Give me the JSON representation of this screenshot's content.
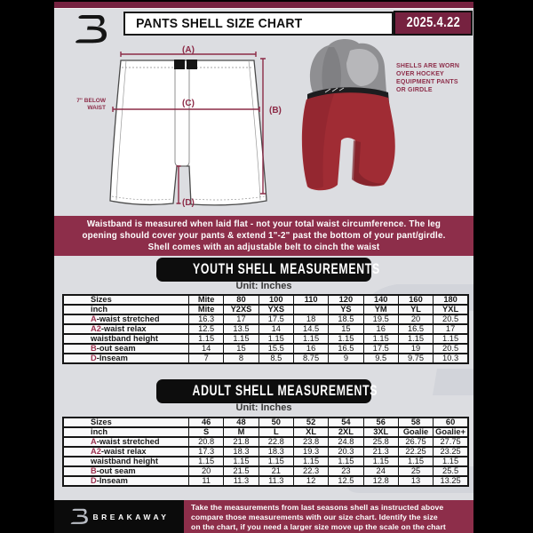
{
  "header": {
    "title": "PANTS SHELL SIZE CHART",
    "date": "2025.4.22"
  },
  "diagram": {
    "label_a": "(A)",
    "label_b": "(B)",
    "label_c": "(C)",
    "label_d": "(D)",
    "waist_note": "7\" BELOW\nWAIST",
    "photo_note": "SHELLS ARE WORN\nOVER HOCKEY\nEQUIPMENT PANTS\nOR GIRDLE"
  },
  "notice_band": {
    "text": "Waistband is measured when laid flat - not your total waist circumference. The leg\nopening should cover your pants & extend 1\"-2\" past the bottom of your pant/girdle.\nShell comes with an adjustable belt to cinch the waist"
  },
  "youth_table": {
    "banner": "YOUTH SHELL MEASUREMENTS",
    "unit": "Unit: Inches",
    "rows": [
      {
        "prefix": "",
        "label": "Sizes",
        "header": true,
        "values": [
          "Mite",
          "80",
          "100",
          "110",
          "120",
          "140",
          "160",
          "180"
        ]
      },
      {
        "prefix": "",
        "label": "inch",
        "header": true,
        "values": [
          "Mite",
          "Y2XS",
          "YXS",
          "",
          "YS",
          "YM",
          "YL",
          "YXL"
        ]
      },
      {
        "prefix": "A",
        "label": "-waist stretched",
        "header": false,
        "values": [
          "16.3",
          "17",
          "17.5",
          "18",
          "18.5",
          "19.5",
          "20",
          "20.5"
        ]
      },
      {
        "prefix": "A2",
        "label": "-waist relax",
        "header": false,
        "values": [
          "12.5",
          "13.5",
          "14",
          "14.5",
          "15",
          "16",
          "16.5",
          "17"
        ]
      },
      {
        "prefix": "",
        "label": "waistband height",
        "header": false,
        "values": [
          "1.15",
          "1.15",
          "1.15",
          "1.15",
          "1.15",
          "1.15",
          "1.15",
          "1.15"
        ]
      },
      {
        "prefix": "B",
        "label": "-out seam",
        "header": false,
        "values": [
          "14",
          "15",
          "15.5",
          "16",
          "16.5",
          "17.5",
          "19",
          "20.5"
        ]
      },
      {
        "prefix": "D",
        "label": "-Inseam",
        "header": false,
        "values": [
          "7",
          "8",
          "8.5",
          "8.75",
          "9",
          "9.5",
          "9.75",
          "10.3"
        ]
      }
    ]
  },
  "adult_table": {
    "banner": "ADULT SHELL MEASUREMENTS",
    "unit": "Unit: Inches",
    "rows": [
      {
        "prefix": "",
        "label": "Sizes",
        "header": true,
        "values": [
          "46",
          "48",
          "50",
          "52",
          "54",
          "56",
          "58",
          "60"
        ]
      },
      {
        "prefix": "",
        "label": "inch",
        "header": true,
        "values": [
          "S",
          "M",
          "L",
          "XL",
          "2XL",
          "3XL",
          "Goalie",
          "Goalie+"
        ]
      },
      {
        "prefix": "A",
        "label": "-waist stretched",
        "header": false,
        "values": [
          "20.8",
          "21.8",
          "22.8",
          "23.8",
          "24.8",
          "25.8",
          "26.75",
          "27.75"
        ]
      },
      {
        "prefix": "A2",
        "label": "-waist relax",
        "header": false,
        "values": [
          "17.3",
          "18.3",
          "18.3",
          "19.3",
          "20.3",
          "21.3",
          "22.25",
          "23.25"
        ]
      },
      {
        "prefix": "",
        "label": "waistband height",
        "header": false,
        "values": [
          "1.15",
          "1.15",
          "1.15",
          "1.15",
          "1.15",
          "1.15",
          "1.15",
          "1.15"
        ]
      },
      {
        "prefix": "B",
        "label": "-out seam",
        "header": false,
        "values": [
          "20",
          "21.5",
          "21",
          "22.3",
          "23",
          "24",
          "25",
          "25.5"
        ]
      },
      {
        "prefix": "D",
        "label": "-Inseam",
        "header": false,
        "values": [
          "11",
          "11.3",
          "11.3",
          "12",
          "12.5",
          "12.8",
          "13",
          "13.25"
        ]
      }
    ]
  },
  "footer": {
    "brand": "BREAKAWAY",
    "text": "Take the measurements from last seasons shell as instructed above\ncompare those measurements  with our size chart. Identify the size\non the chart, if you need a larger size move up the scale on the chart"
  },
  "colors": {
    "maroon_dark": "#762240",
    "maroon": "#8d2e4a",
    "label_accent": "#9c3250",
    "banner_bg": "#0d0d0d",
    "page_bg": "#dcdde1",
    "shell_red": "#a02c34"
  }
}
